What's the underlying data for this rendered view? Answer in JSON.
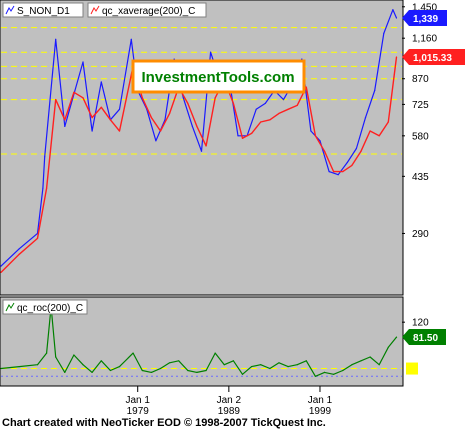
{
  "footer": "Chart created with NeoTicker EOD © 1998-2007 TickQuest Inc.",
  "watermark": "InvestmentTools.com",
  "colors": {
    "panel_bg": "#c0c0c0",
    "price": "#1a1aff",
    "average": "#ff2020",
    "roc": "#008000",
    "grid": "#ffff00",
    "watermark_border": "#ff8c00",
    "watermark_text": "#008000",
    "last_price_box": "#1a1aff",
    "last_avg_box": "#ff2020",
    "last_roc_box": "#008000"
  },
  "chart_data": [
    {
      "type": "line",
      "panel": "main",
      "scale": "log",
      "legend": [
        "S_NON_D1",
        "qc_xaverage(200)_C"
      ],
      "y_ticks": [
        "1,450",
        "1,160",
        "1,015.33",
        "870",
        "725",
        "580",
        "435",
        "290"
      ],
      "ylim": [
        190,
        1500
      ],
      "grid_levels": [
        1250,
        1050,
        950,
        870,
        750,
        510
      ],
      "last_values": {
        "S_NON_D1": "1,339",
        "qc_xaverage(200)_C": "1,015.33"
      },
      "series": [
        {
          "name": "S_NON_D1",
          "x": [
            1964.0,
            1966.0,
            1968.0,
            1968.6,
            1968.8,
            1970.0,
            1971.0,
            1973.0,
            1974.0,
            1975.0,
            1976.0,
            1977.0,
            1978.3,
            1979.0,
            1980.0,
            1981.0,
            1982.0,
            1983.0,
            1984.0,
            1985.0,
            1986.0,
            1987.0,
            1988.0,
            1989.0,
            1990.0,
            1991.0,
            1992.0,
            1993.0,
            1994.0,
            1995.0,
            1996.0,
            1997.0,
            1998.0,
            1999.0,
            2000.0,
            2001.0,
            2002.0,
            2003.0,
            2004.0,
            2005.0,
            2006.0,
            2007.0,
            2007.4
          ],
          "y": [
            230,
            260,
            290,
            400,
            500,
            1150,
            620,
            980,
            600,
            850,
            650,
            700,
            1150,
            800,
            700,
            560,
            650,
            1000,
            760,
            620,
            520,
            1050,
            860,
            880,
            580,
            580,
            700,
            730,
            800,
            750,
            840,
            1000,
            600,
            560,
            450,
            440,
            480,
            530,
            660,
            800,
            1200,
            1420,
            1339
          ]
        },
        {
          "name": "qc_xaverage(200)_C",
          "x": [
            1964.0,
            1966.0,
            1968.0,
            1969.0,
            1970.0,
            1971.0,
            1972.0,
            1973.0,
            1974.0,
            1975.0,
            1976.0,
            1977.0,
            1978.5,
            1979.5,
            1980.5,
            1981.5,
            1982.5,
            1983.5,
            1984.5,
            1985.5,
            1986.5,
            1987.5,
            1988.5,
            1989.5,
            1990.5,
            1991.5,
            1992.5,
            1993.5,
            1994.5,
            1995.5,
            1996.5,
            1997.5,
            1998.5,
            1999.5,
            2000.5,
            2001.5,
            2002.5,
            2003.5,
            2004.5,
            2005.5,
            2006.5,
            2007.4
          ],
          "y": [
            220,
            250,
            280,
            400,
            750,
            650,
            790,
            760,
            660,
            710,
            650,
            600,
            950,
            760,
            660,
            600,
            680,
            820,
            730,
            620,
            540,
            760,
            860,
            730,
            570,
            590,
            640,
            650,
            680,
            700,
            720,
            820,
            580,
            520,
            450,
            450,
            470,
            520,
            600,
            580,
            640,
            1015.33
          ]
        }
      ]
    },
    {
      "type": "line",
      "panel": "roc",
      "legend": [
        "qc_roc(200)_C"
      ],
      "y_ticks": [
        "120"
      ],
      "ylim": [
        -40,
        180
      ],
      "last_values": {
        "qc_roc(200)_C": "81.50"
      },
      "series": [
        {
          "name": "qc_roc(200)_C",
          "x": [
            1964.0,
            1966.0,
            1968.0,
            1969.0,
            1969.5,
            1970.0,
            1971.0,
            1972.0,
            1973.0,
            1974.0,
            1975.0,
            1976.0,
            1977.0,
            1978.5,
            1979.5,
            1980.5,
            1981.5,
            1982.5,
            1983.5,
            1984.5,
            1985.5,
            1986.5,
            1987.5,
            1988.5,
            1989.5,
            1990.5,
            1991.5,
            1992.5,
            1993.5,
            1994.5,
            1995.5,
            1996.5,
            1997.5,
            1998.5,
            1999.5,
            2000.5,
            2001.5,
            2002.5,
            2003.5,
            2004.5,
            2005.5,
            2006.5,
            2007.4
          ],
          "y": [
            0,
            5,
            10,
            40,
            160,
            30,
            -10,
            35,
            10,
            -10,
            20,
            -5,
            5,
            40,
            -5,
            -10,
            0,
            15,
            20,
            -5,
            -10,
            -5,
            40,
            10,
            20,
            -15,
            5,
            10,
            0,
            15,
            5,
            10,
            20,
            -20,
            -10,
            -15,
            -5,
            10,
            20,
            30,
            10,
            55,
            81.5
          ]
        }
      ]
    }
  ],
  "x_axis": {
    "xlim": [
      1964.0,
      2008.0
    ],
    "ticks": [
      {
        "x": 1979.0,
        "top": "Jan 1",
        "bottom": "1979"
      },
      {
        "x": 1989.0,
        "top": "Jan 2",
        "bottom": "1989"
      },
      {
        "x": 1999.0,
        "top": "Jan 1",
        "bottom": "1999"
      }
    ]
  }
}
